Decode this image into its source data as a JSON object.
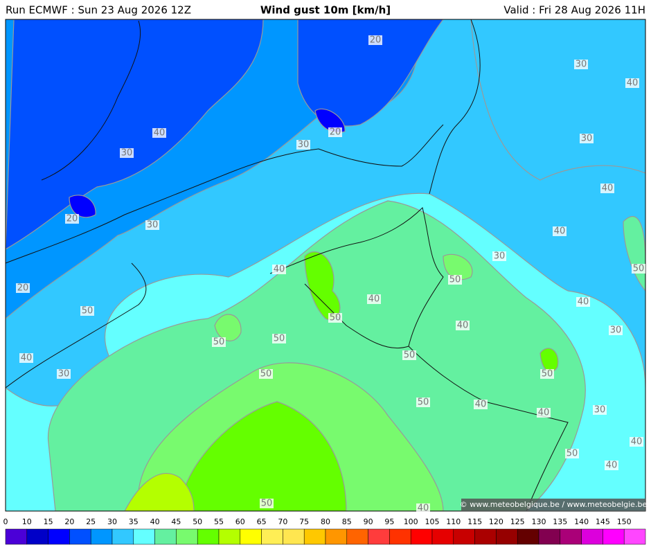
{
  "header": {
    "run": "Run ECMWF : Sun 23 Aug 2026 12Z",
    "title": "Wind gust 10m [km/h]",
    "valid": "Valid : Fri 28 Aug 2026 11H"
  },
  "map": {
    "contour_labels": [
      20,
      30,
      40,
      20,
      40,
      30,
      30,
      30,
      40,
      20,
      30,
      40,
      30,
      40,
      50,
      20,
      50,
      40,
      40,
      50,
      50,
      40,
      30,
      50,
      50,
      50,
      40,
      30,
      50,
      50,
      50,
      40,
      40,
      30,
      40,
      50,
      40,
      50,
      40
    ],
    "copyright": "© www.meteobelgique.be / www.meteobelgie.be"
  },
  "colorbar": {
    "ticks": [
      0,
      10,
      15,
      20,
      25,
      30,
      35,
      40,
      45,
      50,
      55,
      60,
      65,
      70,
      75,
      80,
      85,
      90,
      95,
      100,
      105,
      110,
      115,
      120,
      125,
      130,
      135,
      140,
      145,
      150
    ],
    "colors": [
      "#4b00d7",
      "#0000c8",
      "#0000ff",
      "#0050ff",
      "#0096ff",
      "#32c8ff",
      "#64ffff",
      "#64f0a0",
      "#78fa6e",
      "#64ff00",
      "#b4ff00",
      "#ffff00",
      "#ffee55",
      "#ffe650",
      "#ffc800",
      "#ff9600",
      "#ff6400",
      "#ff3c3c",
      "#ff3200",
      "#ff0000",
      "#e60000",
      "#c80000",
      "#aa0000",
      "#960000",
      "#640000",
      "#820050",
      "#aa0078",
      "#dc00dc",
      "#ff00ff",
      "#ff46ff"
    ]
  }
}
